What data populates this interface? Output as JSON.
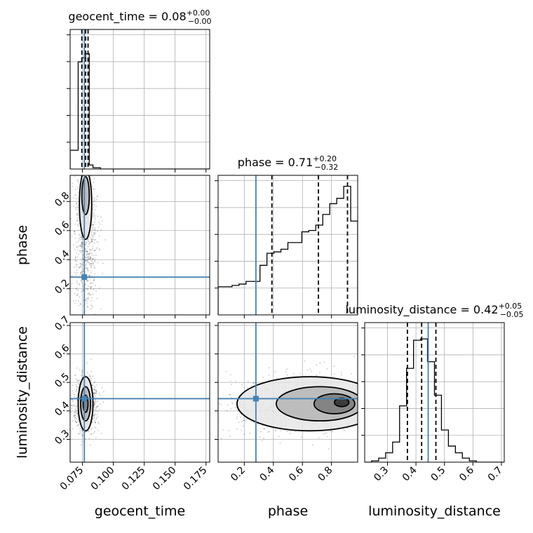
{
  "chart_data": {
    "type": "scatter",
    "layout": "corner-plot",
    "parameters": [
      "geocent_time",
      "phase",
      "luminosity_distance"
    ],
    "axis_labels": [
      "geocent_time",
      "phase",
      "luminosity_distance"
    ],
    "titles": [
      {
        "name": "geocent_time",
        "median": "0.08",
        "plus": "+0.00",
        "minus": "−0.00"
      },
      {
        "name": "phase",
        "median": "0.71",
        "plus": "+0.20",
        "minus": "−0.32"
      },
      {
        "name": "luminosity_distance",
        "median": "0.42",
        "plus": "+0.05",
        "minus": "−0.05"
      }
    ],
    "ranges": [
      [
        0.065,
        0.178
      ],
      [
        0.02,
        0.98
      ],
      [
        0.22,
        0.71
      ]
    ],
    "ticks": [
      {
        "values": [
          0.075,
          0.1,
          0.125,
          0.15,
          0.175
        ],
        "labels": [
          "0.075",
          "0.100",
          "0.125",
          "0.150",
          "0.175"
        ]
      },
      {
        "values": [
          0.2,
          0.4,
          0.6,
          0.8
        ],
        "labels": [
          "0.2",
          "0.4",
          "0.6",
          "0.8"
        ]
      },
      {
        "values": [
          0.3,
          0.4,
          0.5,
          0.6,
          0.7
        ],
        "labels": [
          "0.3",
          "0.4",
          "0.5",
          "0.6",
          "0.7"
        ]
      }
    ],
    "truths": [
      0.0765,
      0.28,
      0.443
    ],
    "truth_color": "#4682b4",
    "quantiles": [
      [
        0.0745,
        0.0775,
        0.0795
      ],
      [
        0.39,
        0.71,
        0.91
      ],
      [
        0.37,
        0.42,
        0.47
      ]
    ],
    "histograms": [
      {
        "edges": [
          0.065,
          0.0715,
          0.0745,
          0.0775,
          0.0805,
          0.0835,
          0.0895,
          0.095,
          0.178
        ],
        "counts": [
          0.14,
          0.8,
          0.83,
          0.86,
          0.03,
          0.01,
          0.0,
          0.0
        ]
      },
      {
        "edges": [
          0.02,
          0.068,
          0.116,
          0.164,
          0.212,
          0.26,
          0.308,
          0.356,
          0.404,
          0.452,
          0.5,
          0.548,
          0.596,
          0.644,
          0.692,
          0.74,
          0.788,
          0.836,
          0.884,
          0.932,
          0.98
        ],
        "counts": [
          0.21,
          0.21,
          0.22,
          0.23,
          0.25,
          0.25,
          0.37,
          0.46,
          0.47,
          0.49,
          0.54,
          0.54,
          0.62,
          0.63,
          0.67,
          0.75,
          0.83,
          0.87,
          0.96,
          0.7
        ]
      },
      {
        "edges": [
          0.22,
          0.2445,
          0.269,
          0.2935,
          0.318,
          0.3425,
          0.367,
          0.3915,
          0.416,
          0.4405,
          0.465,
          0.4895,
          0.514,
          0.5385,
          0.563,
          0.5875,
          0.612,
          0.6365,
          0.661,
          0.6855,
          0.71
        ],
        "counts": [
          0.0,
          0.01,
          0.03,
          0.07,
          0.15,
          0.42,
          0.7,
          0.91,
          0.92,
          0.75,
          0.5,
          0.24,
          0.12,
          0.07,
          0.03,
          0.01,
          0.0,
          0.0,
          0.0,
          0.0
        ]
      }
    ],
    "contours": [
      {
        "x": 0,
        "y": 1,
        "levels": [
          {
            "center": [
              0.0775,
              0.78
            ],
            "half_width": [
              0.005,
              0.24
            ]
          },
          {
            "center": [
              0.0775,
              0.84
            ],
            "half_width": [
              0.003,
              0.13
            ]
          }
        ],
        "scatter_center": [
          0.0775,
          0.55
        ],
        "scatter_spread": [
          0.005,
          0.28
        ]
      },
      {
        "x": 0,
        "y": 2,
        "levels": [
          {
            "center": [
              0.0775,
              0.425
            ],
            "half_width": [
              0.006,
              0.095
            ]
          },
          {
            "center": [
              0.0775,
              0.425
            ],
            "half_width": [
              0.004,
              0.06
            ]
          },
          {
            "center": [
              0.0775,
              0.425
            ],
            "half_width": [
              0.002,
              0.03
            ]
          }
        ],
        "scatter_center": [
          0.0775,
          0.425
        ],
        "scatter_spread": [
          0.005,
          0.05
        ]
      },
      {
        "x": 1,
        "y": 2,
        "levels": [
          {
            "center": [
              0.65,
              0.425
            ],
            "half_width": [
              0.5,
              0.095
            ]
          },
          {
            "center": [
              0.72,
              0.425
            ],
            "half_width": [
              0.3,
              0.06
            ]
          },
          {
            "center": [
              0.82,
              0.425
            ],
            "half_width": [
              0.14,
              0.035
            ]
          },
          {
            "center": [
              0.87,
              0.43
            ],
            "half_width": [
              0.05,
              0.015
            ]
          }
        ],
        "scatter_center": [
          0.6,
          0.425
        ],
        "scatter_spread": [
          0.28,
          0.05
        ]
      }
    ],
    "grid": true
  }
}
